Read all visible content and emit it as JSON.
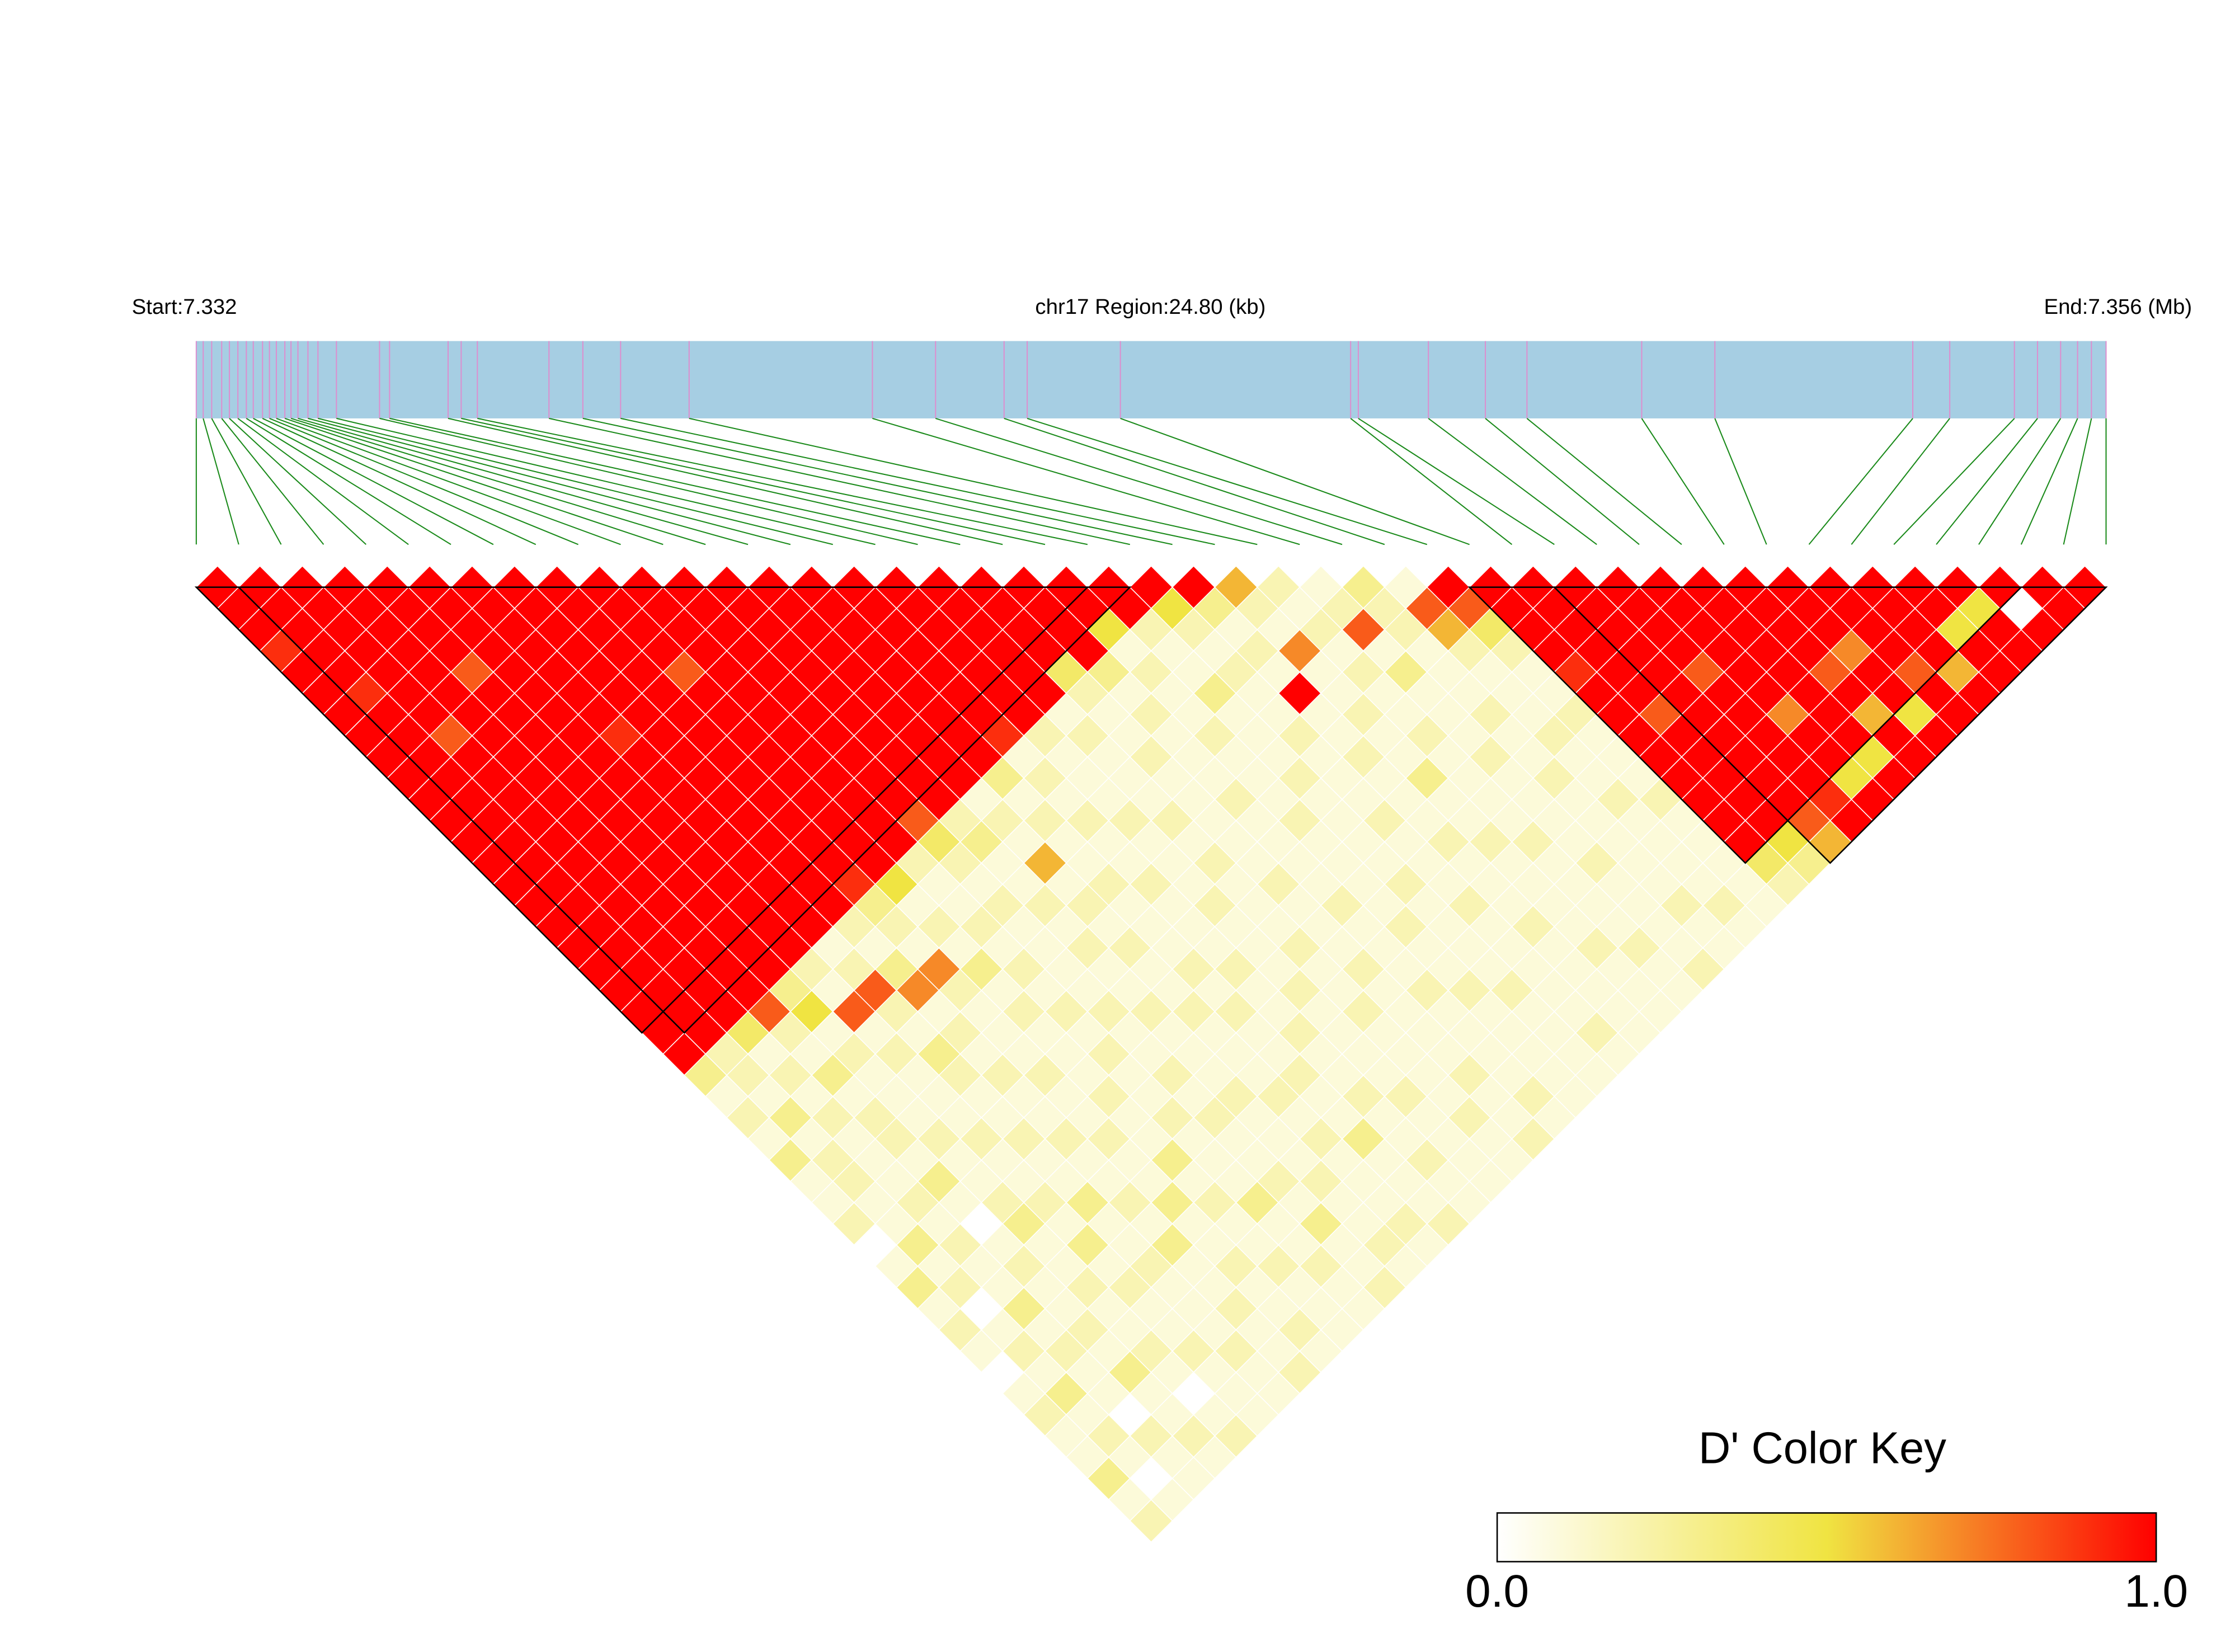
{
  "chart_data": {
    "type": "heatmap",
    "start_label": "Start:7.332",
    "region_label": "chr17 Region:24.80 (kb)",
    "end_label": "End:7.356 (Mb)",
    "legend_title": "D' Color Key",
    "xlim": [
      0,
      24.8
    ],
    "bar_color": "#a6cee3",
    "marker_color": "#dc8fcf",
    "connector_color": "#1a8a1a",
    "snp_positions": [
      0.0,
      0.09,
      0.2,
      0.33,
      0.43,
      0.54,
      0.65,
      0.74,
      0.86,
      0.95,
      1.04,
      1.15,
      1.23,
      1.32,
      1.45,
      1.58,
      1.82,
      2.38,
      2.51,
      3.27,
      3.44,
      3.65,
      4.58,
      5.02,
      5.51,
      6.4,
      8.78,
      9.6,
      10.49,
      10.79,
      12.0,
      14.99,
      15.09,
      16.0,
      16.74,
      17.28,
      18.77,
      19.72,
      22.29,
      22.77,
      23.61,
      23.91,
      24.21,
      24.43,
      24.61,
      24.8
    ],
    "blocks": [
      [
        0,
        21
      ],
      [
        1,
        22
      ],
      [
        30,
        43
      ],
      [
        32,
        45
      ]
    ],
    "colorbar": {
      "lim": [
        0,
        1
      ],
      "ticks": [
        {
          "value": 0,
          "label": "0.0"
        },
        {
          "value": 1,
          "label": "1.0"
        }
      ],
      "colors": [
        "#ffffff",
        "#f0e442",
        "#ff0000"
      ]
    },
    "values": [
      [
        1,
        1,
        1,
        0.9,
        1,
        1,
        1,
        1,
        1,
        1,
        1,
        1,
        1,
        1,
        1,
        1,
        1,
        1,
        1,
        1,
        1,
        1,
        1,
        0.3,
        0.1,
        0.2,
        0.1,
        0.3,
        0.1,
        0.1,
        0.2,
        0,
        0.1,
        0.3,
        0.1,
        0.2,
        0.1,
        0,
        0.1,
        0.2,
        0.1,
        0.1,
        0.3,
        0.1,
        0.2
      ],
      [
        1,
        1,
        1,
        1,
        1,
        0.9,
        1,
        1,
        1,
        1,
        1,
        1,
        1,
        1,
        1,
        1,
        1,
        1,
        1,
        1,
        1,
        1,
        0.2,
        0.2,
        0.1,
        0.3,
        0.1,
        0.2,
        0.2,
        0.1,
        0.1,
        0.3,
        0.1,
        0.2,
        0,
        0.1,
        0.2,
        0.1,
        0.3,
        0.1,
        0.2,
        0.1,
        0,
        0.1
      ],
      [
        1,
        1,
        1,
        1,
        1,
        1,
        1,
        0.8,
        1,
        1,
        1,
        1,
        1,
        1,
        1,
        1,
        1,
        1,
        1,
        1,
        1,
        0.4,
        0.1,
        0.2,
        0.1,
        0.2,
        0.1,
        0.1,
        0.1,
        0.2,
        0.1,
        0.2,
        0.1,
        0.1,
        0.3,
        0.1,
        0.2,
        0.1,
        0.1,
        0,
        0.2,
        0.1,
        0.1
      ],
      [
        1,
        1,
        1,
        1,
        1,
        1,
        1,
        1,
        1,
        1,
        1,
        1,
        1,
        1,
        1,
        1,
        1,
        1,
        1,
        1,
        0.8,
        0.2,
        0.1,
        0.3,
        0.1,
        0.2,
        0.2,
        0.1,
        0.3,
        0.1,
        0,
        0.1,
        0.2,
        0.1,
        0.1,
        0.2,
        0.1,
        0.3,
        0.1,
        0.1,
        0.2,
        0.1
      ],
      [
        1,
        1,
        1,
        1,
        0.8,
        1,
        1,
        1,
        1,
        1,
        1,
        1,
        1,
        1,
        1,
        1,
        1,
        1,
        1,
        0.3,
        0.5,
        0.1,
        0.2,
        0.1,
        0.1,
        0.1,
        0.2,
        0.1,
        0.1,
        0.2,
        0.3,
        0.1,
        0.1,
        0.2,
        0.1,
        0.1,
        0.2,
        0.1,
        0,
        0.1,
        0.2
      ],
      [
        1,
        1,
        1,
        1,
        1,
        1,
        1,
        1,
        1,
        1,
        1,
        1,
        1,
        1,
        1,
        1,
        1,
        1,
        0.2,
        0.1,
        0.8,
        0.1,
        0.2,
        0.1,
        0.1,
        0.1,
        0.2,
        0.1,
        0.1,
        0.2,
        0.1,
        0.3,
        0.1,
        0.2,
        0.1,
        0.1,
        0.2,
        0.1,
        0.1,
        0.1
      ],
      [
        1,
        1,
        1,
        1,
        1,
        1,
        1,
        0.9,
        1,
        1,
        1,
        1,
        1,
        1,
        1,
        1,
        1,
        0.1,
        0.2,
        0.8,
        0.2,
        0.1,
        0.3,
        0.2,
        0.1,
        0.1,
        0.2,
        0.1,
        0.1,
        0.3,
        0.1,
        0.1,
        0.2,
        0.1,
        0.1,
        0.1,
        0.2,
        0.1,
        0.1
      ],
      [
        1,
        1,
        1,
        1,
        1,
        1,
        1,
        1,
        1,
        1,
        1,
        1,
        1,
        1,
        1,
        1,
        0.2,
        0.1,
        0.3,
        0.7,
        0.1,
        0.2,
        0.1,
        0.2,
        0.1,
        0.1,
        0.2,
        0.1,
        0.1,
        0.2,
        0.1,
        0.3,
        0.1,
        0.1,
        0.2,
        0.1,
        0.1,
        0.2
      ],
      [
        1,
        1,
        1,
        1,
        1,
        1,
        1,
        1,
        1,
        1,
        1,
        1,
        1,
        1,
        0.9,
        0.3,
        0.2,
        0.1,
        0.7,
        0.2,
        0.1,
        0.1,
        0.1,
        0.2,
        0.1,
        0.1,
        0.2,
        0.1,
        0.1,
        0.3,
        0.1,
        0.1,
        0.2,
        0.1,
        0.1,
        0.2,
        0.1
      ],
      [
        1,
        1,
        1,
        1,
        0.8,
        1,
        1,
        1,
        1,
        1,
        1,
        1,
        1,
        1,
        0.5,
        0.1,
        0.2,
        0.1,
        0.3,
        0.1,
        0.2,
        0.1,
        0.1,
        0.1,
        0.2,
        0.1,
        0.1,
        0.3,
        0.1,
        0.2,
        0.1,
        0.1,
        0.2,
        0.1,
        0.1,
        0.1
      ],
      [
        1,
        1,
        1,
        1,
        1,
        1,
        1,
        1,
        1,
        1,
        1,
        1,
        1,
        0.2,
        0.1,
        0.1,
        0.2,
        0.1,
        0.2,
        0.1,
        0.2,
        0.1,
        0.2,
        0.1,
        0.1,
        0.2,
        0.1,
        0.1,
        0.1,
        0.3,
        0.1,
        0.1,
        0.2,
        0.1,
        0.1
      ],
      [
        1,
        1,
        1,
        1,
        1,
        1,
        1,
        1,
        1,
        1,
        1,
        0.8,
        0.4,
        0.2,
        0.1,
        0.2,
        0.1,
        0.1,
        0.1,
        0.1,
        0.2,
        0.1,
        0.1,
        0.2,
        0.1,
        0.2,
        0.1,
        0.1,
        0.2,
        0.1,
        0.3,
        0.1,
        0.1,
        0.2
      ],
      [
        1,
        1,
        1,
        1,
        1,
        1,
        1,
        1,
        1,
        1,
        1,
        0.2,
        0.3,
        0.1,
        0.1,
        0.2,
        0.1,
        0.2,
        0.1,
        0.1,
        0.2,
        0.1,
        0.1,
        0.1,
        0.2,
        0.1,
        0.1,
        0.1,
        0.2,
        0.1,
        0.1,
        0.2,
        0.1
      ],
      [
        1,
        1,
        1,
        1,
        1,
        1,
        1,
        1,
        1,
        1,
        0.1,
        0.2,
        0.1,
        0.6,
        0.1,
        0.2,
        0.1,
        0.2,
        0.1,
        0.1,
        0.2,
        0.1,
        0.1,
        0.1,
        0.2,
        0.1,
        0.2,
        0.1,
        0.1,
        0.1,
        0.2,
        0.1
      ],
      [
        1,
        1,
        1,
        1,
        1,
        1,
        1,
        1,
        1,
        0.3,
        0.1,
        0.2,
        0.1,
        0.1,
        0.2,
        0.1,
        0.1,
        0.1,
        0.2,
        0.1,
        0.2,
        0.1,
        0.1,
        0.2,
        0.1,
        0.1,
        0.3,
        0.1,
        0.1,
        0.1,
        0.2
      ],
      [
        1,
        1,
        1,
        1,
        1,
        1,
        1,
        0.9,
        0.1,
        0.2,
        0.1,
        0.2,
        0.1,
        0.1,
        0.2,
        0.1,
        0.1,
        0.1,
        0.2,
        0.1,
        0.1,
        0.2,
        0.1,
        0.1,
        0.2,
        0.1,
        0.1,
        0.2,
        0.1,
        0.1
      ],
      [
        1,
        1,
        1,
        1,
        1,
        1,
        1,
        0.2,
        0.1,
        0.1,
        0.1,
        0.2,
        0.1,
        0.1,
        0.1,
        0.2,
        0.1,
        0.1,
        0.1,
        0.2,
        0.1,
        0.1,
        0.1,
        0.1,
        0.2,
        0.1,
        0.1,
        0.1,
        0.1
      ],
      [
        1,
        1,
        1,
        1,
        1,
        1,
        0.1,
        0.2,
        0.1,
        0.1,
        0.1,
        0.2,
        0.1,
        0.2,
        0.1,
        0.1,
        0.1,
        0.2,
        0.1,
        0.1,
        0.2,
        0.1,
        0.1,
        0.1,
        0.1,
        0.2,
        0.1,
        0.1
      ],
      [
        1,
        1,
        1,
        1,
        0.4,
        0.2,
        0.1,
        0.1,
        0.2,
        0.1,
        0.1,
        0.1,
        0.1,
        0.1,
        0.2,
        0.1,
        0.1,
        0.1,
        0.2,
        0.1,
        0.1,
        0.1,
        0.1,
        0.2,
        0.1,
        0.1,
        0.2
      ],
      [
        1,
        1,
        1,
        1,
        0.3,
        0.1,
        0.2,
        0.1,
        0.1,
        0.1,
        0.2,
        0.1,
        0.1,
        0.1,
        0.1,
        0.2,
        0.1,
        0.1,
        0.1,
        0.2,
        0.1,
        0.1,
        0.1,
        0.1,
        0.2,
        0.1
      ],
      [
        1,
        1,
        0.5,
        0.1,
        0.2,
        0.1,
        0.1,
        0.2,
        0.1,
        0.1,
        0.1,
        0.2,
        0.1,
        0.1,
        0.1,
        0.1,
        0.2,
        0.1,
        0.1,
        0.2,
        0.1,
        0.1,
        0.1,
        0.1,
        0.1
      ],
      [
        1,
        1,
        0.2,
        0.1,
        0.1,
        0.3,
        0.1,
        0.1,
        0.1,
        0.2,
        0.1,
        0.1,
        0.1,
        0.1,
        0.2,
        0.1,
        0.1,
        0.1,
        0.1,
        0.2,
        0.1,
        0.1,
        0.1,
        0.1
      ],
      [
        1,
        0.5,
        0.2,
        0.1,
        0.2,
        0.1,
        0.1,
        0.2,
        0.1,
        0.1,
        0.1,
        0.2,
        0.1,
        0.1,
        0.1,
        0.2,
        0.1,
        0.1,
        0.1,
        0.1,
        0.1,
        0.2,
        0.1
      ],
      [
        1,
        0.3,
        0.1,
        0.2,
        0.1,
        1,
        0.1,
        0.1,
        0.2,
        0.1,
        0.1,
        0.1,
        0.2,
        0.1,
        0.1,
        0.1,
        0.2,
        0.1,
        0.1,
        0.1,
        0.1,
        0.1
      ],
      [
        0.6,
        0.2,
        0.1,
        0.7,
        0.1,
        0.1,
        0.2,
        0.1,
        0.1,
        0.3,
        0.1,
        0.1,
        0.2,
        0.1,
        0.1,
        0.1,
        0.1,
        0.2,
        0.1,
        0.1,
        0.1
      ],
      [
        0.2,
        0.1,
        0.2,
        0.1,
        0.2,
        0.1,
        0.1,
        0.2,
        0.1,
        0.1,
        0.1,
        0.1,
        0.2,
        0.1,
        0.1,
        0.1,
        0.1,
        0.2,
        0.1,
        0.1
      ],
      [
        0.1,
        0.2,
        0.8,
        0.1,
        0.3,
        0.1,
        0.1,
        0.1,
        0.2,
        0.1,
        0.1,
        0.1,
        0.1,
        0.2,
        0.1,
        0.1,
        0.1,
        0.1,
        0.2
      ],
      [
        0.3,
        0.2,
        0.2,
        0.1,
        0.1,
        0.1,
        0.2,
        0.1,
        0.1,
        0.2,
        0.1,
        0.1,
        0.1,
        0.1,
        0.1,
        0.2,
        0.1,
        0.1
      ],
      [
        0.1,
        0.8,
        0.6,
        0.2,
        0.1,
        0.1,
        0.1,
        0.2,
        0.1,
        0.1,
        0.2,
        0.1,
        0.1,
        0.1,
        0.1,
        0.2,
        0.1
      ],
      [
        1,
        0.8,
        0.4,
        0.2,
        0.1,
        0.1,
        0.2,
        0.1,
        0.1,
        0.1,
        0.2,
        0.1,
        0.1,
        0.1,
        0.1,
        0.1
      ],
      [
        1,
        1,
        1,
        1,
        0.9,
        1,
        1,
        1,
        1,
        1,
        1,
        1,
        1,
        0.4,
        0.2
      ],
      [
        1,
        1,
        1,
        1,
        1,
        1,
        0.8,
        1,
        1,
        1,
        1,
        1,
        0.5,
        0.3
      ],
      [
        1,
        1,
        1,
        1,
        1,
        1,
        1,
        1,
        1,
        1,
        1,
        0.8,
        0.6
      ],
      [
        1,
        1,
        1,
        1,
        0.8,
        1,
        1,
        1,
        1,
        1,
        0.9,
        1
      ],
      [
        1,
        1,
        1,
        1,
        1,
        1,
        0.7,
        1,
        1,
        0.5,
        1
      ],
      [
        1,
        1,
        1,
        1,
        1,
        1,
        1,
        1,
        0.5,
        1
      ],
      [
        1,
        1,
        1,
        1,
        0.8,
        1,
        0.6,
        1,
        1
      ],
      [
        1,
        1,
        1,
        0.7,
        1,
        1,
        0.5,
        1
      ],
      [
        1,
        1,
        1,
        1,
        0.8,
        1,
        1
      ],
      [
        1,
        1,
        1,
        1,
        0.6,
        1
      ],
      [
        1,
        1,
        0.5,
        1,
        1
      ],
      [
        1,
        0.5,
        1,
        1
      ],
      [
        1,
        0,
        1
      ],
      [
        1,
        1
      ],
      [
        1
      ]
    ]
  }
}
